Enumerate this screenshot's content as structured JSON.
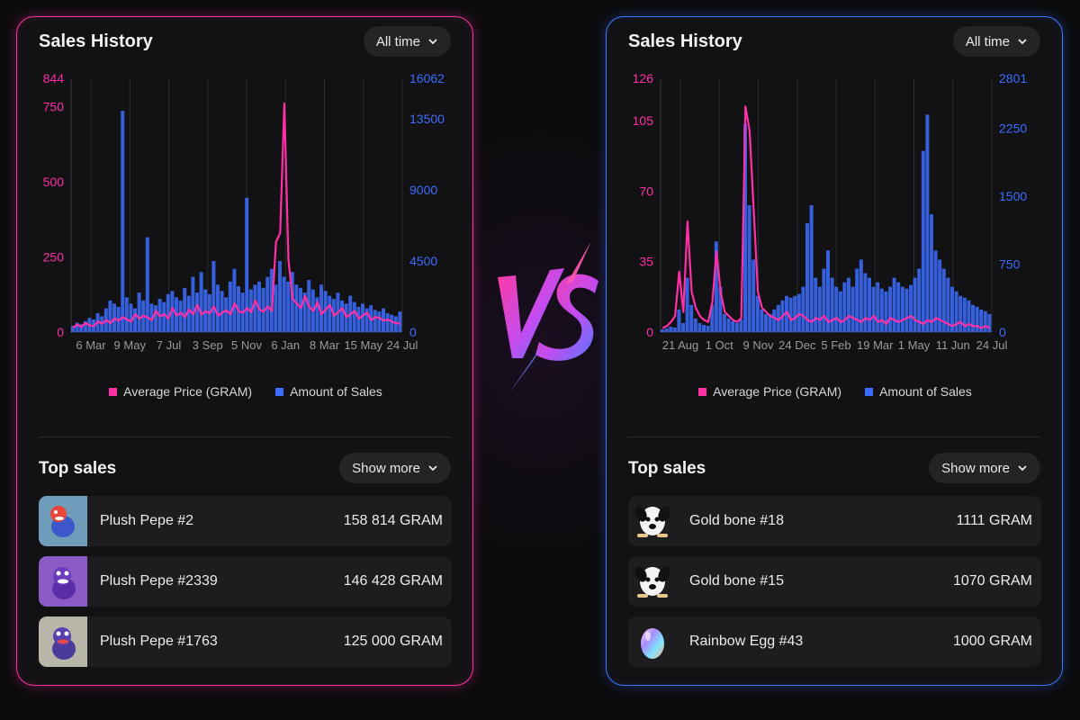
{
  "colors": {
    "price": "#ff2fa6",
    "sales": "#3d6dff",
    "left_border": "#ff2fa6",
    "right_border": "#3d76ff"
  },
  "vs_text": "VS",
  "panels": [
    {
      "title": "Sales History",
      "range_label": "All time",
      "legend": {
        "price": "Average Price (GRAM)",
        "sales": "Amount of Sales"
      },
      "top_sales_title": "Top sales",
      "show_more_label": "Show more",
      "top_sales": [
        {
          "name": "Plush Pepe #2",
          "price": "158 814 GRAM",
          "icon": "plush-pepe-icon"
        },
        {
          "name": "Plush Pepe #2339",
          "price": "146 428 GRAM",
          "icon": "plush-pepe-icon"
        },
        {
          "name": "Plush Pepe #1763",
          "price": "125 000 GRAM",
          "icon": "plush-pepe-icon"
        }
      ]
    },
    {
      "title": "Sales History",
      "range_label": "All time",
      "legend": {
        "price": "Average Price (GRAM)",
        "sales": "Amount of Sales"
      },
      "top_sales_title": "Top sales",
      "show_more_label": "Show more",
      "top_sales": [
        {
          "name": "Gold bone #18",
          "price": "1111 GRAM",
          "icon": "dog-face-icon"
        },
        {
          "name": "Gold bone #15",
          "price": "1070 GRAM",
          "icon": "dog-face-icon"
        },
        {
          "name": "Rainbow Egg #43",
          "price": "1000 GRAM",
          "icon": "rainbow-egg-icon"
        }
      ]
    }
  ],
  "chart_data": [
    {
      "type": "line",
      "series": [
        {
          "name": "Average Price (GRAM)",
          "axis": "left",
          "color": "#ff2fa6",
          "values": [
            15,
            25,
            18,
            30,
            22,
            20,
            35,
            28,
            40,
            30,
            45,
            38,
            50,
            42,
            35,
            60,
            45,
            55,
            48,
            40,
            70,
            52,
            60,
            45,
            80,
            55,
            65,
            50,
            75,
            60,
            90,
            58,
            70,
            62,
            85,
            55,
            65,
            72,
            60,
            95,
            70,
            64,
            80,
            66,
            105,
            75,
            68,
            85,
            70,
            300,
            330,
            760,
            240,
            110,
            95,
            80,
            120,
            85,
            70,
            100,
            60,
            75,
            90,
            55,
            65,
            80,
            50,
            60,
            70,
            45,
            55,
            65,
            40,
            50,
            48,
            38,
            42,
            35,
            30,
            28
          ]
        },
        {
          "name": "Amount of Sales",
          "axis": "right",
          "color": "#3d6dff",
          "style": "bars",
          "values": [
            400,
            600,
            500,
            700,
            900,
            800,
            1200,
            1000,
            1500,
            2000,
            1800,
            1600,
            14000,
            2200,
            1800,
            1500,
            2500,
            2000,
            6000,
            1800,
            1700,
            2100,
            1900,
            2400,
            2600,
            2200,
            2000,
            2800,
            2300,
            3500,
            2500,
            3800,
            2700,
            2400,
            4500,
            3000,
            2600,
            2200,
            3200,
            4000,
            2900,
            2500,
            8500,
            2700,
            3000,
            3200,
            2800,
            3500,
            4000,
            3000,
            4500,
            3500,
            3200,
            3800,
            3000,
            2800,
            2500,
            3300,
            2700,
            2200,
            3000,
            2600,
            2300,
            2100,
            2500,
            2000,
            1800,
            2300,
            1900,
            1600,
            1800,
            1500,
            1700,
            1400,
            1300,
            1500,
            1200,
            1100,
            1000,
            1300
          ]
        }
      ],
      "x_ticks": [
        "6 Mar",
        "9 May",
        "7 Jul",
        "3 Sep",
        "5 Nov",
        "6 Jan",
        "8 Mar",
        "15 May",
        "24 Jul"
      ],
      "y_left": {
        "ticks": [
          0,
          250,
          500,
          750,
          844
        ],
        "ylim": [
          0,
          844
        ]
      },
      "y_right": {
        "ticks": [
          0,
          4500,
          9000,
          13500,
          16062
        ],
        "ylim": [
          0,
          16062
        ]
      },
      "grid": "vertical",
      "legend_position": "bottom"
    },
    {
      "type": "line",
      "series": [
        {
          "name": "Average Price (GRAM)",
          "axis": "left",
          "color": "#ff2fa6",
          "values": [
            2,
            3,
            5,
            8,
            30,
            10,
            55,
            20,
            12,
            8,
            6,
            5,
            15,
            40,
            20,
            10,
            8,
            6,
            5,
            7,
            112,
            100,
            60,
            20,
            12,
            10,
            8,
            7,
            6,
            8,
            10,
            6,
            7,
            9,
            8,
            6,
            5,
            7,
            6,
            8,
            5,
            6,
            7,
            5,
            6,
            8,
            7,
            6,
            5,
            7,
            6,
            8,
            5,
            6,
            4,
            7,
            6,
            5,
            6,
            7,
            8,
            6,
            5,
            4,
            6,
            5,
            7,
            6,
            5,
            4,
            3,
            4,
            5,
            3,
            4,
            3,
            3,
            2,
            3,
            2
          ]
        },
        {
          "name": "Amount of Sales",
          "axis": "right",
          "color": "#3d6dff",
          "style": "bars",
          "values": [
            30,
            40,
            60,
            50,
            250,
            100,
            600,
            300,
            150,
            100,
            80,
            70,
            300,
            1000,
            500,
            200,
            150,
            120,
            100,
            140,
            2300,
            1400,
            800,
            400,
            250,
            200,
            200,
            250,
            300,
            350,
            400,
            380,
            400,
            420,
            500,
            1200,
            1400,
            600,
            500,
            700,
            900,
            600,
            500,
            450,
            550,
            600,
            500,
            700,
            800,
            650,
            600,
            500,
            550,
            480,
            450,
            500,
            600,
            550,
            500,
            480,
            520,
            600,
            700,
            2000,
            2400,
            1300,
            900,
            800,
            700,
            600,
            500,
            450,
            400,
            380,
            350,
            300,
            280,
            250,
            230,
            200
          ]
        }
      ],
      "x_ticks": [
        "21 Aug",
        "1 Oct",
        "9 Nov",
        "24 Dec",
        "5 Feb",
        "19 Mar",
        "1 May",
        "11 Jun",
        "24 Jul"
      ],
      "y_left": {
        "ticks": [
          0,
          35,
          70,
          105,
          126
        ],
        "ylim": [
          0,
          126
        ]
      },
      "y_right": {
        "ticks": [
          0,
          750,
          1500,
          2250,
          2801
        ],
        "ylim": [
          0,
          2801
        ]
      },
      "grid": "vertical",
      "legend_position": "bottom"
    }
  ]
}
